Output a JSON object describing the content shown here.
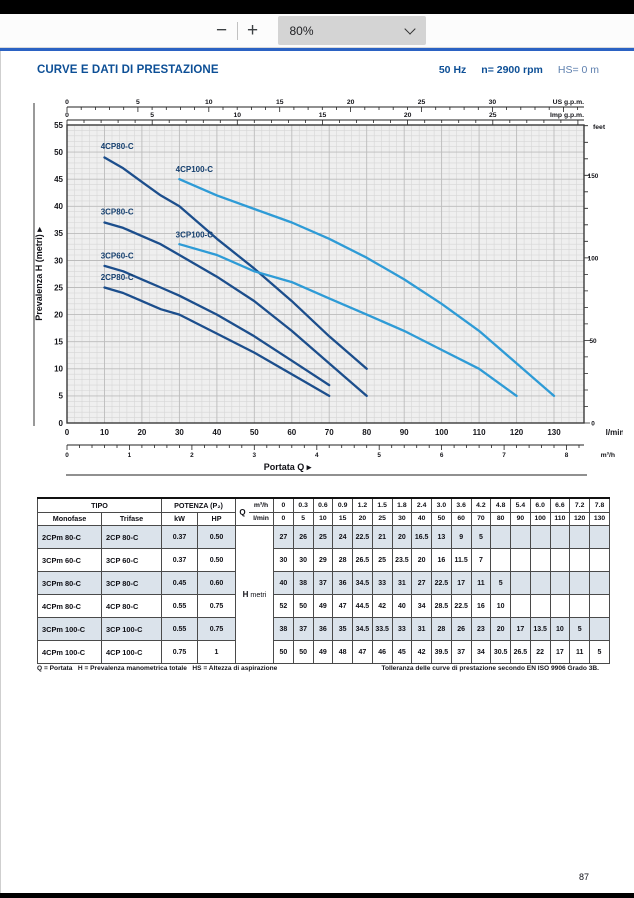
{
  "viewer": {
    "zoom_out_label": "−",
    "zoom_in_label": "+",
    "zoom_level": "80%"
  },
  "page": {
    "title": "CURVE E DATI DI PRESTAZIONE",
    "frequency": "50 Hz",
    "speed": "n= 2900 rpm",
    "suction": "HS= 0 m",
    "footnote_left": "Q = Portata   H = Prevalenza manometrica totale   HS = Altezza di aspirazione",
    "footnote_right": "Tolleranza delle curve di prestazione secondo EN ISO 9906 Grado 3B.",
    "page_number": "87"
  },
  "chart_data": {
    "type": "line",
    "title": "",
    "xlabel": "Portata Q",
    "ylabel": "Prevalenza H (metri)",
    "xlim_lmin": [
      0,
      138
    ],
    "ylim_m": [
      0,
      55
    ],
    "grid": true,
    "axes": {
      "y_left": {
        "unit": "metri",
        "ticks": [
          0,
          5,
          10,
          15,
          20,
          25,
          30,
          35,
          40,
          45,
          50,
          55
        ]
      },
      "y_right": {
        "unit": "feet",
        "ticks": [
          0,
          50,
          100,
          150
        ]
      },
      "x_lmin": {
        "unit": "l/min",
        "ticks": [
          0,
          10,
          20,
          30,
          40,
          50,
          60,
          70,
          80,
          90,
          100,
          110,
          120,
          130
        ]
      },
      "x_m3h": {
        "unit": "m³/h",
        "ticks": [
          0,
          1,
          2,
          3,
          4,
          5,
          6,
          7,
          8
        ]
      },
      "x_usgpm": {
        "unit": "US g.p.m.",
        "ticks": [
          0,
          5,
          10,
          15,
          20,
          25,
          30
        ]
      },
      "x_impgpm": {
        "unit": "Imp g.p.m.",
        "ticks": [
          0,
          5,
          10,
          15,
          20,
          25
        ]
      }
    },
    "colors": {
      "dark": "#1c4e8c",
      "light": "#2e9bd6"
    },
    "series": [
      {
        "name": "4CP80-C",
        "color": "dark",
        "x": [
          10,
          15,
          20,
          25,
          30,
          40,
          50,
          60,
          70,
          80
        ],
        "y": [
          49,
          47,
          44.5,
          42,
          40,
          34,
          28.5,
          22.5,
          16,
          10
        ],
        "label_at": [
          9,
          50.6
        ]
      },
      {
        "name": "4CP100-C",
        "color": "light",
        "x": [
          30,
          40,
          50,
          60,
          70,
          80,
          90,
          100,
          110,
          120,
          130
        ],
        "y": [
          45,
          42,
          39.5,
          37,
          34,
          30.5,
          26.5,
          22,
          17,
          11,
          5
        ],
        "label_at": [
          29,
          46.3
        ]
      },
      {
        "name": "3CP80-C",
        "color": "dark",
        "x": [
          10,
          15,
          20,
          25,
          30,
          40,
          50,
          60,
          70,
          80
        ],
        "y": [
          37,
          36,
          34.5,
          33,
          31,
          27,
          22.5,
          17,
          11,
          5
        ],
        "label_at": [
          9,
          38.5
        ]
      },
      {
        "name": "3CP100-C",
        "color": "light",
        "x": [
          30,
          40,
          50,
          60,
          70,
          80,
          90,
          100,
          110,
          120
        ],
        "y": [
          33,
          31,
          28,
          26,
          23,
          20,
          17,
          13.5,
          10,
          5
        ],
        "label_at": [
          29,
          34.2
        ]
      },
      {
        "name": "3CP60-C",
        "color": "dark",
        "x": [
          10,
          15,
          20,
          25,
          30,
          40,
          50,
          60,
          70
        ],
        "y": [
          29,
          28,
          26.5,
          25,
          23.5,
          20,
          16,
          11.5,
          7
        ],
        "label_at": [
          9,
          30.4
        ]
      },
      {
        "name": "2CP80-C",
        "color": "dark",
        "x": [
          10,
          15,
          20,
          25,
          30,
          40,
          50,
          60,
          70
        ],
        "y": [
          25,
          24,
          22.5,
          21,
          20,
          16.5,
          13,
          9,
          5
        ],
        "label_at": [
          9,
          26.4
        ]
      }
    ]
  },
  "table": {
    "header": {
      "tipo": "TIPO",
      "monofase": "Monofase",
      "trifase": "Trifase",
      "potenza": "POTENZA (P₂)",
      "kw": "kW",
      "hp": "HP",
      "q": "Q",
      "m3h": "m³/h",
      "lmin": "l/min",
      "h_bold": "H",
      "h_rest": " metri",
      "q_m3h_values": [
        "0",
        "0.3",
        "0.6",
        "0.9",
        "1.2",
        "1.5",
        "1.8",
        "2.4",
        "3.0",
        "3.6",
        "4.2",
        "4.8",
        "5.4",
        "6.0",
        "6.6",
        "7.2",
        "7.8"
      ],
      "q_lmin_values": [
        "0",
        "5",
        "10",
        "15",
        "20",
        "25",
        "30",
        "40",
        "50",
        "60",
        "70",
        "80",
        "90",
        "100",
        "110",
        "120",
        "130"
      ]
    },
    "rows": [
      {
        "monofase": "2CPm 80-C",
        "trifase": "2CP 80-C",
        "kw": "0.37",
        "hp": "0.50",
        "h": [
          "27",
          "26",
          "25",
          "24",
          "22.5",
          "21",
          "20",
          "16.5",
          "13",
          "9",
          "5",
          "",
          "",
          "",
          "",
          "",
          ""
        ]
      },
      {
        "monofase": "3CPm 60-C",
        "trifase": "3CP 60-C",
        "kw": "0.37",
        "hp": "0.50",
        "h": [
          "30",
          "30",
          "29",
          "28",
          "26.5",
          "25",
          "23.5",
          "20",
          "16",
          "11.5",
          "7",
          "",
          "",
          "",
          "",
          "",
          ""
        ]
      },
      {
        "monofase": "3CPm 80-C",
        "trifase": "3CP 80-C",
        "kw": "0.45",
        "hp": "0.60",
        "h": [
          "40",
          "38",
          "37",
          "36",
          "34.5",
          "33",
          "31",
          "27",
          "22.5",
          "17",
          "11",
          "5",
          "",
          "",
          "",
          "",
          ""
        ]
      },
      {
        "monofase": "4CPm 80-C",
        "trifase": "4CP 80-C",
        "kw": "0.55",
        "hp": "0.75",
        "h": [
          "52",
          "50",
          "49",
          "47",
          "44.5",
          "42",
          "40",
          "34",
          "28.5",
          "22.5",
          "16",
          "10",
          "",
          "",
          "",
          "",
          ""
        ]
      },
      {
        "monofase": "3CPm 100-C",
        "trifase": "3CP 100-C",
        "kw": "0.55",
        "hp": "0.75",
        "h": [
          "38",
          "37",
          "36",
          "35",
          "34.5",
          "33.5",
          "33",
          "31",
          "28",
          "26",
          "23",
          "20",
          "17",
          "13.5",
          "10",
          "5",
          ""
        ]
      },
      {
        "monofase": "4CPm 100-C",
        "trifase": "4CP 100-C",
        "kw": "0.75",
        "hp": "1",
        "h": [
          "50",
          "50",
          "49",
          "48",
          "47",
          "46",
          "45",
          "42",
          "39.5",
          "37",
          "34",
          "30.5",
          "26.5",
          "22",
          "17",
          "11",
          "5"
        ]
      }
    ]
  }
}
